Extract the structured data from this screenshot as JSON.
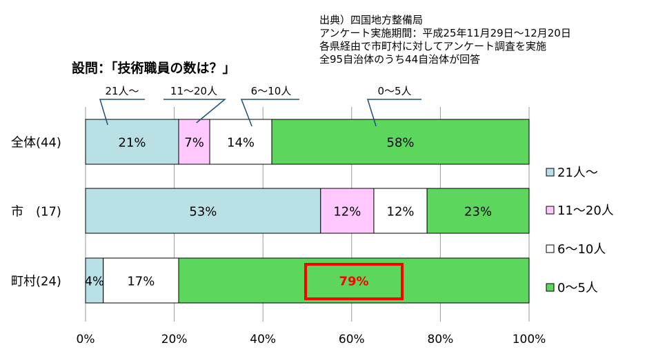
{
  "source_note": [
    "出典）四国地方整備局",
    "アンケート実施期間：平成25年11月29日～12月20日",
    "各県経由で市町村に対してアンケート調査を実施",
    "全95自治体のうち44自治体が回答"
  ],
  "chart_data": {
    "type": "bar",
    "orientation": "horizontal",
    "stacked": true,
    "title": "設問：「技術職員の数は？」",
    "categories": [
      "全体(44)",
      "市　(17)",
      "町村(24)"
    ],
    "series": [
      {
        "name": "21人～",
        "color": "#b9e0e5",
        "values": [
          21,
          53,
          4
        ],
        "labels": [
          "21%",
          "53%",
          "4%"
        ]
      },
      {
        "name": "11～20人",
        "color": "#ffc9ff",
        "values": [
          7,
          12,
          0
        ],
        "labels": [
          "7%",
          "12%",
          ""
        ]
      },
      {
        "name": "6～10人",
        "color": "#ffffff",
        "values": [
          14,
          12,
          17
        ],
        "labels": [
          "14%",
          "12%",
          "17%"
        ]
      },
      {
        "name": "0～5人",
        "color": "#5cd65c",
        "values": [
          58,
          23,
          79
        ],
        "labels": [
          "58%",
          "23%",
          "79%"
        ]
      }
    ],
    "xlim": [
      0,
      100
    ],
    "xticks": [
      "0%",
      "20%",
      "40%",
      "60%",
      "80%",
      "100%"
    ],
    "grid": true,
    "legend_position": "right",
    "callouts": [
      "21人～",
      "11～20人",
      "6～10人",
      "0～5人"
    ],
    "highlight": {
      "category": "町村(24)",
      "series": "0～5人",
      "label": "79%",
      "color": "#ff0000"
    }
  }
}
